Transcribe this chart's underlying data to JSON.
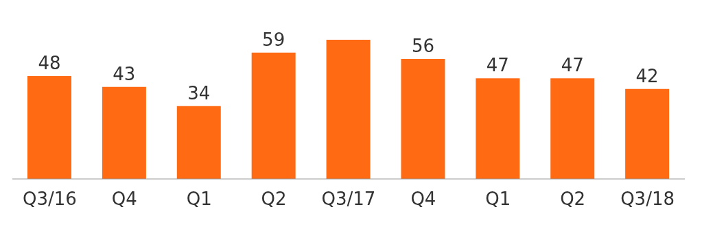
{
  "chart_data": {
    "type": "bar",
    "categories": [
      "Q3/16",
      "Q4",
      "Q1",
      "Q2",
      "Q3/17",
      "Q4",
      "Q1",
      "Q2",
      "Q3/18"
    ],
    "values": [
      48,
      43,
      34,
      59,
      65,
      56,
      47,
      47,
      42
    ],
    "value_labels": [
      "48",
      "43",
      "34",
      "59",
      null,
      "56",
      "47",
      "47",
      "42"
    ],
    "color": "#ff6a13",
    "grid": false,
    "legend": false
  }
}
